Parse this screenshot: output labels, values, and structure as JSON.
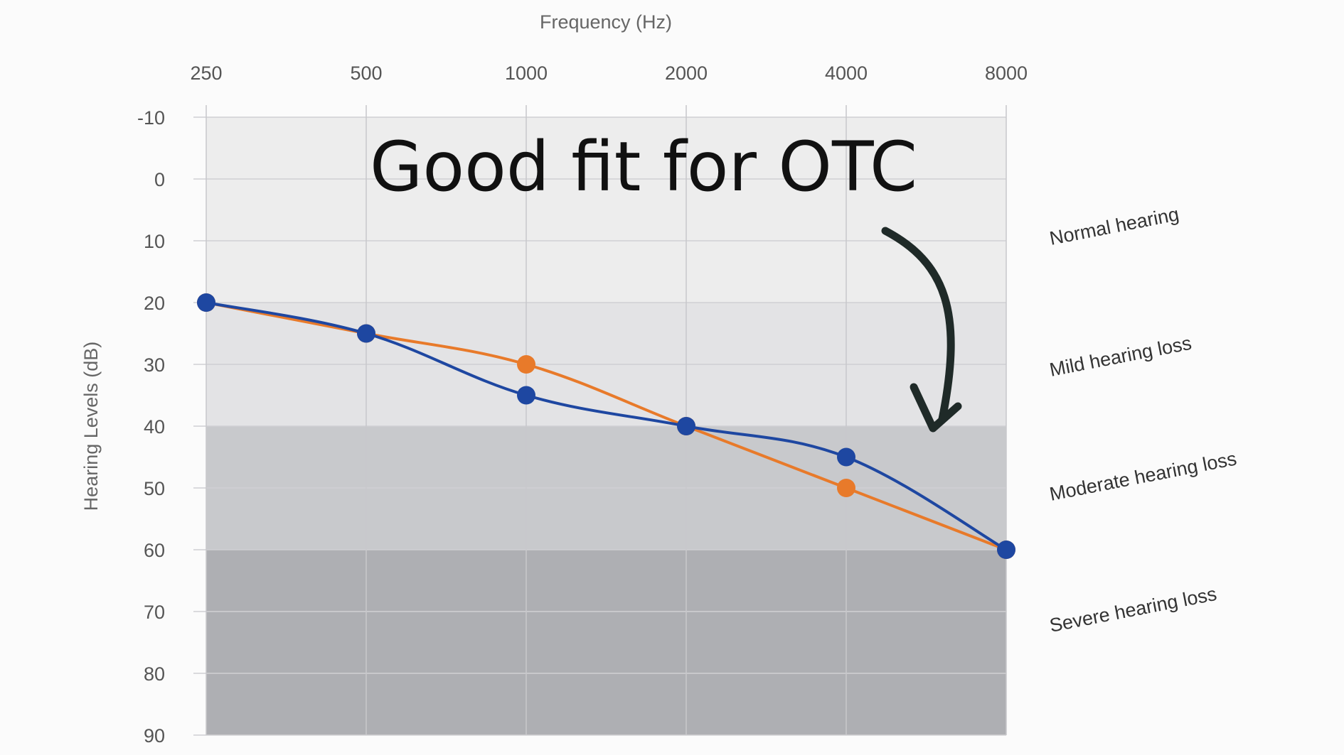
{
  "chart_data": {
    "type": "line",
    "title": "",
    "xlabel": "Frequency (Hz)",
    "ylabel": "Hearing Levels (dB)",
    "x_tick_labels": [
      "250",
      "500",
      "1000",
      "2000",
      "4000",
      "8000"
    ],
    "y_tick_labels": [
      "-10",
      "0",
      "10",
      "20",
      "30",
      "40",
      "50",
      "60",
      "70",
      "80",
      "90"
    ],
    "x": [
      250,
      500,
      1000,
      2000,
      4000,
      8000
    ],
    "ylim": [
      -10,
      90
    ],
    "y_inverted": true,
    "x_scale": "log2",
    "grid": true,
    "legend": "none",
    "series": [
      {
        "color": "#e87a2a",
        "values": [
          20,
          25,
          30,
          40,
          50,
          60
        ]
      },
      {
        "color": "#1e47a1",
        "values": [
          20,
          25,
          35,
          40,
          45,
          60
        ]
      }
    ],
    "zones": [
      {
        "label": "Normal hearing",
        "from": -10,
        "to": 20,
        "color": "#ededed"
      },
      {
        "label": "Mild hearing loss",
        "from": 20,
        "to": 40,
        "color": "#e3e3e5"
      },
      {
        "label": "Moderate hearing loss",
        "from": 40,
        "to": 60,
        "color": "#c8c9cc"
      },
      {
        "label": "Severe hearing loss",
        "from": 60,
        "to": 90,
        "color": "#aeafb3"
      }
    ],
    "annotation": {
      "text": "Good fit for OTC",
      "arrow_color": "#1f2a28"
    }
  }
}
